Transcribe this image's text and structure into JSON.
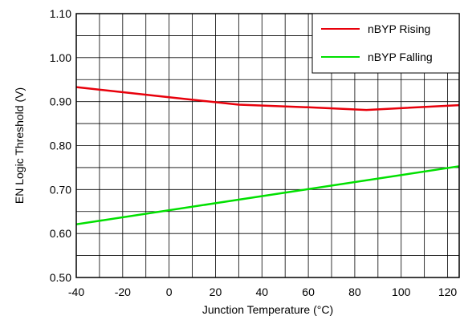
{
  "chart_data": {
    "type": "line",
    "title": "",
    "xlabel": "Junction Temperature (°C)",
    "ylabel": "EN Logic Threshold (V)",
    "xlim": [
      -40,
      125
    ],
    "ylim": [
      0.5,
      1.1
    ],
    "xticks": [
      -40,
      -20,
      0,
      20,
      40,
      60,
      80,
      100,
      120
    ],
    "yticks": [
      0.5,
      0.6,
      0.7,
      0.8,
      0.9,
      1.0,
      1.1
    ],
    "ytick_labels": [
      "0.50",
      "0.60",
      "0.70",
      "0.80",
      "0.90",
      "1.00",
      "1.10"
    ],
    "grid": true,
    "legend_position": "top-right",
    "series": [
      {
        "name": "nBYP Rising",
        "color": "#e8000b",
        "x": [
          -40,
          0,
          30,
          60,
          85,
          125
        ],
        "y": [
          0.933,
          0.91,
          0.893,
          0.887,
          0.881,
          0.892
        ]
      },
      {
        "name": "nBYP Falling",
        "color": "#00e000",
        "x": [
          -40,
          125
        ],
        "y": [
          0.621,
          0.753
        ]
      }
    ]
  }
}
